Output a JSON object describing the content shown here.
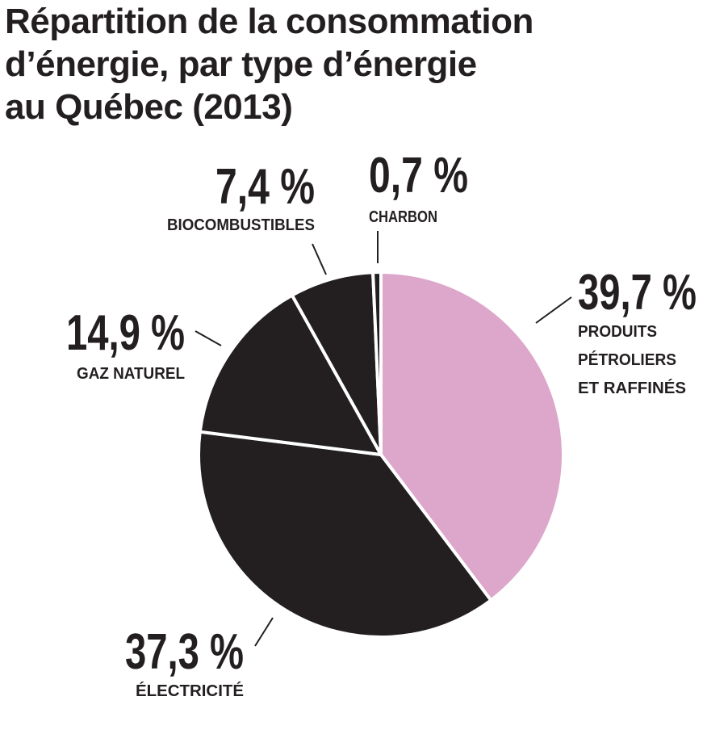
{
  "title_lines": [
    "Répartition de la consommation",
    "d’énergie, par type d’énergie",
    "au Québec (2013)"
  ],
  "colors": {
    "accent": "#dda6cb",
    "dark": "#231f20",
    "separator": "#ffffff"
  },
  "chart_data": {
    "type": "pie",
    "title": "Répartition de la consommation d’énergie, par type d’énergie au Québec (2013)",
    "unit": "%",
    "slices": [
      {
        "value_label": "39,7 %",
        "value": 39.7,
        "label_lines": [
          "PRODUITS",
          "PÉTROLIERS",
          "ET RAFFINÉS"
        ],
        "color": "#dda6cb"
      },
      {
        "value_label": "37,3 %",
        "value": 37.3,
        "label_lines": [
          "ÉLECTRICITÉ"
        ],
        "color": "#231f20"
      },
      {
        "value_label": "14,9 %",
        "value": 14.9,
        "label_lines": [
          "GAZ NATUREL"
        ],
        "color": "#231f20"
      },
      {
        "value_label": "7,4 %",
        "value": 7.4,
        "label_lines": [
          "BIOCOMBUSTIBLES"
        ],
        "color": "#231f20"
      },
      {
        "value_label": "0,7 %",
        "value": 0.7,
        "label_lines": [
          "CHARBON"
        ],
        "color": "#231f20"
      }
    ]
  }
}
